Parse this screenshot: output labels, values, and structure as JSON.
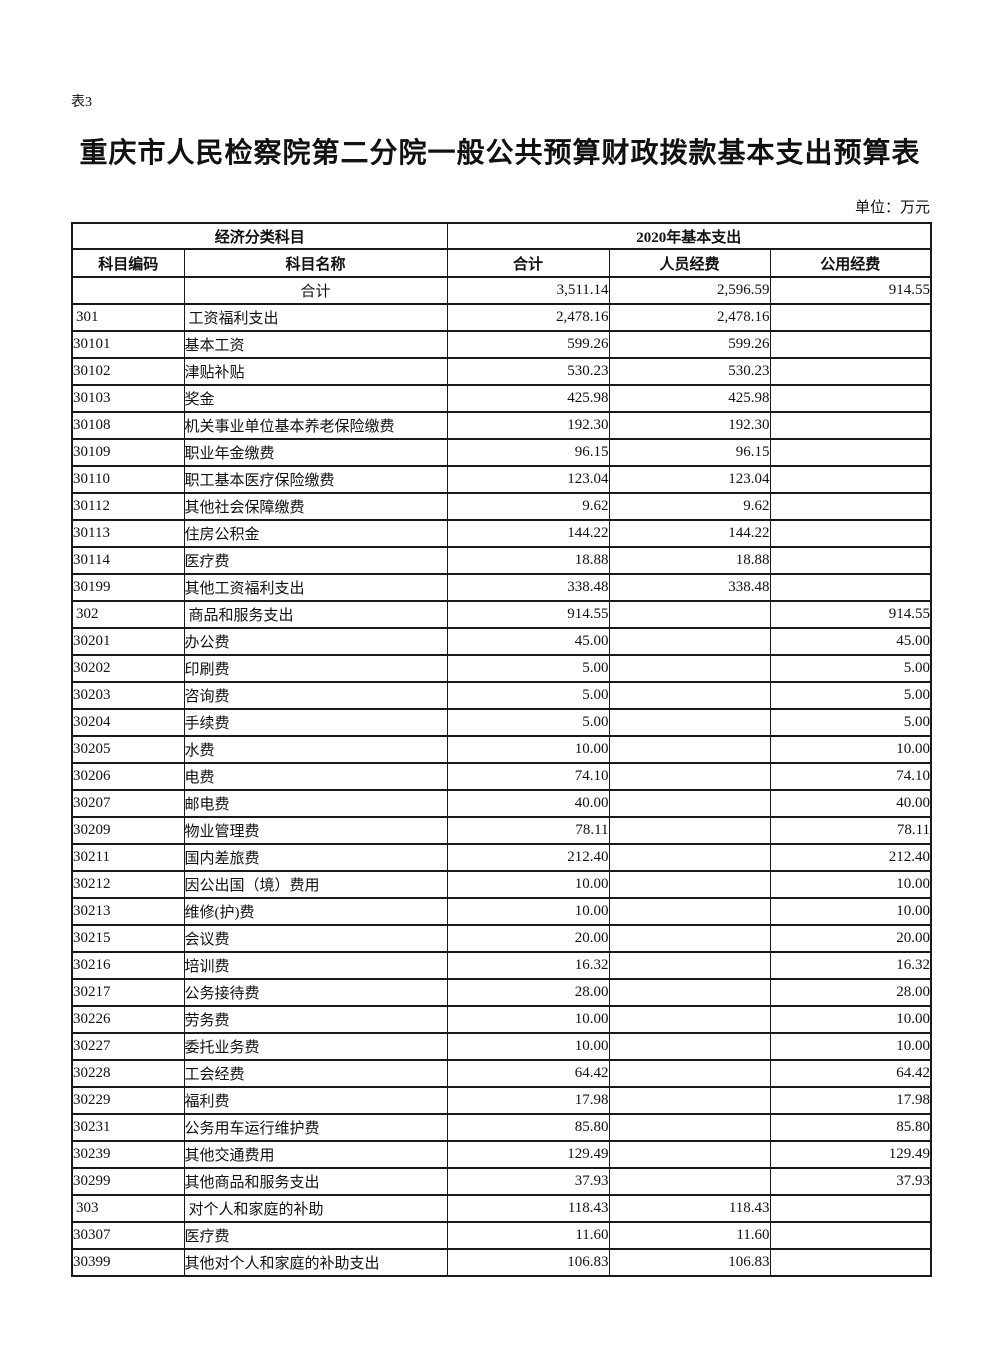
{
  "page": {
    "sheet_label": "表3",
    "title": "重庆市人民检察院第二分院一般公共预算财政拨款基本支出预算表",
    "unit_note": "单位：万元"
  },
  "table": {
    "header": {
      "group_left": "经济分类科目",
      "group_right": "2020年基本支出",
      "columns": [
        "科目编码",
        "科目名称",
        "合计",
        "人员经费",
        "公用经费"
      ]
    },
    "rows": [
      {
        "code": "",
        "name": "合计",
        "level": "total",
        "total": "3,511.14",
        "personnel": "2,596.59",
        "public": "914.55"
      },
      {
        "code": "301",
        "name": "工资福利支出",
        "level": "category",
        "total": "2,478.16",
        "personnel": "2,478.16",
        "public": ""
      },
      {
        "code": "30101",
        "name": "基本工资",
        "level": "item",
        "total": "599.26",
        "personnel": "599.26",
        "public": ""
      },
      {
        "code": "30102",
        "name": "津贴补贴",
        "level": "item",
        "total": "530.23",
        "personnel": "530.23",
        "public": ""
      },
      {
        "code": "30103",
        "name": "奖金",
        "level": "item",
        "total": "425.98",
        "personnel": "425.98",
        "public": ""
      },
      {
        "code": "30108",
        "name": "机关事业单位基本养老保险缴费",
        "level": "item",
        "total": "192.30",
        "personnel": "192.30",
        "public": ""
      },
      {
        "code": "30109",
        "name": "职业年金缴费",
        "level": "item",
        "total": "96.15",
        "personnel": "96.15",
        "public": ""
      },
      {
        "code": "30110",
        "name": "职工基本医疗保险缴费",
        "level": "item",
        "total": "123.04",
        "personnel": "123.04",
        "public": ""
      },
      {
        "code": "30112",
        "name": "其他社会保障缴费",
        "level": "item",
        "total": "9.62",
        "personnel": "9.62",
        "public": ""
      },
      {
        "code": "30113",
        "name": "住房公积金",
        "level": "item",
        "total": "144.22",
        "personnel": "144.22",
        "public": ""
      },
      {
        "code": "30114",
        "name": "医疗费",
        "level": "item",
        "total": "18.88",
        "personnel": "18.88",
        "public": ""
      },
      {
        "code": "30199",
        "name": "其他工资福利支出",
        "level": "item",
        "total": "338.48",
        "personnel": "338.48",
        "public": ""
      },
      {
        "code": "302",
        "name": "商品和服务支出",
        "level": "category",
        "total": "914.55",
        "personnel": "",
        "public": "914.55"
      },
      {
        "code": "30201",
        "name": "办公费",
        "level": "item",
        "total": "45.00",
        "personnel": "",
        "public": "45.00"
      },
      {
        "code": "30202",
        "name": "印刷费",
        "level": "item",
        "total": "5.00",
        "personnel": "",
        "public": "5.00"
      },
      {
        "code": "30203",
        "name": "咨询费",
        "level": "item",
        "total": "5.00",
        "personnel": "",
        "public": "5.00"
      },
      {
        "code": "30204",
        "name": "手续费",
        "level": "item",
        "total": "5.00",
        "personnel": "",
        "public": "5.00"
      },
      {
        "code": "30205",
        "name": "水费",
        "level": "item",
        "total": "10.00",
        "personnel": "",
        "public": "10.00"
      },
      {
        "code": "30206",
        "name": "电费",
        "level": "item",
        "total": "74.10",
        "personnel": "",
        "public": "74.10"
      },
      {
        "code": "30207",
        "name": "邮电费",
        "level": "item",
        "total": "40.00",
        "personnel": "",
        "public": "40.00"
      },
      {
        "code": "30209",
        "name": "物业管理费",
        "level": "item",
        "total": "78.11",
        "personnel": "",
        "public": "78.11"
      },
      {
        "code": "30211",
        "name": "国内差旅费",
        "level": "item",
        "total": "212.40",
        "personnel": "",
        "public": "212.40"
      },
      {
        "code": "30212",
        "name": "因公出国（境）费用",
        "level": "item",
        "total": "10.00",
        "personnel": "",
        "public": "10.00"
      },
      {
        "code": "30213",
        "name": "维修(护)费",
        "level": "item",
        "total": "10.00",
        "personnel": "",
        "public": "10.00"
      },
      {
        "code": "30215",
        "name": "会议费",
        "level": "item",
        "total": "20.00",
        "personnel": "",
        "public": "20.00"
      },
      {
        "code": "30216",
        "name": "培训费",
        "level": "item",
        "total": "16.32",
        "personnel": "",
        "public": "16.32"
      },
      {
        "code": "30217",
        "name": "公务接待费",
        "level": "item",
        "total": "28.00",
        "personnel": "",
        "public": "28.00"
      },
      {
        "code": "30226",
        "name": "劳务费",
        "level": "item",
        "total": "10.00",
        "personnel": "",
        "public": "10.00"
      },
      {
        "code": "30227",
        "name": "委托业务费",
        "level": "item",
        "total": "10.00",
        "personnel": "",
        "public": "10.00"
      },
      {
        "code": "30228",
        "name": "工会经费",
        "level": "item",
        "total": "64.42",
        "personnel": "",
        "public": "64.42"
      },
      {
        "code": "30229",
        "name": "福利费",
        "level": "item",
        "total": "17.98",
        "personnel": "",
        "public": "17.98"
      },
      {
        "code": "30231",
        "name": "公务用车运行维护费",
        "level": "item",
        "total": "85.80",
        "personnel": "",
        "public": "85.80"
      },
      {
        "code": "30239",
        "name": "其他交通费用",
        "level": "item",
        "total": "129.49",
        "personnel": "",
        "public": "129.49"
      },
      {
        "code": "30299",
        "name": "其他商品和服务支出",
        "level": "item",
        "total": "37.93",
        "personnel": "",
        "public": "37.93"
      },
      {
        "code": "303",
        "name": "对个人和家庭的补助",
        "level": "category",
        "total": "118.43",
        "personnel": "118.43",
        "public": ""
      },
      {
        "code": "30307",
        "name": "医疗费",
        "level": "item",
        "total": "11.60",
        "personnel": "11.60",
        "public": ""
      },
      {
        "code": "30399",
        "name": "其他对个人和家庭的补助支出",
        "level": "item",
        "total": "106.83",
        "personnel": "106.83",
        "public": ""
      }
    ]
  }
}
